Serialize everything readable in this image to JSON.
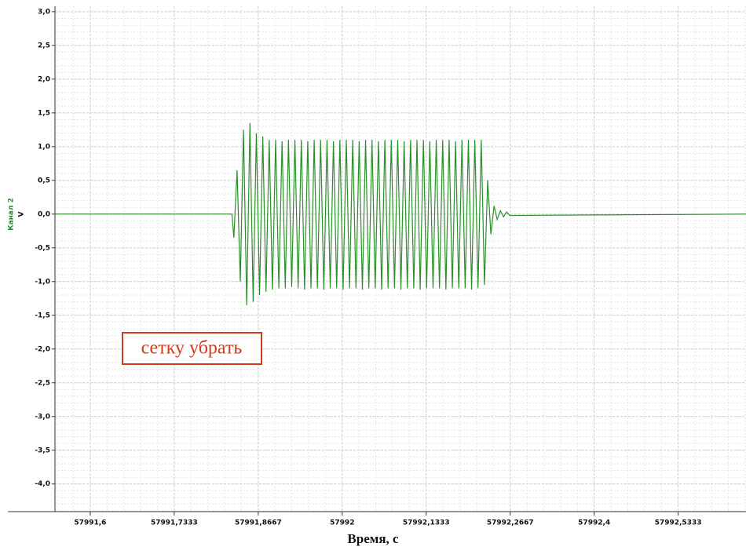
{
  "chart_data": {
    "type": "line",
    "ylabel": "Канал 2",
    "yunit": "V",
    "xlabel": "Время, с",
    "annotation": "сетку убрать",
    "color": "#2a8f2a",
    "grid": true,
    "xlim": [
      57991.544,
      57992.641
    ],
    "ylim": [
      -4.41,
      3.08
    ],
    "xticks": [
      {
        "value": 57991.6,
        "label": "57991,6"
      },
      {
        "value": 57991.7333,
        "label": "57991,7333"
      },
      {
        "value": 57991.8667,
        "label": "57991,8667"
      },
      57992,
      {
        "value": 57992.1333,
        "label": "57992,1333"
      },
      {
        "value": 57992.2667,
        "label": "57992,2667"
      },
      {
        "value": 57992.4,
        "label": "57992,4"
      },
      {
        "value": 57992.5333,
        "label": "57992,5333"
      }
    ],
    "yticks": [
      {
        "value": 3,
        "label": "3,0"
      },
      {
        "value": 2.5,
        "label": "2,5"
      },
      {
        "value": 2,
        "label": "2,0"
      },
      {
        "value": 1.5,
        "label": "1,5"
      },
      {
        "value": 1,
        "label": "1,0"
      },
      {
        "value": 0.5,
        "label": "0,5"
      },
      {
        "value": 0,
        "label": "0,0"
      },
      {
        "value": -0.5,
        "label": "-0,5"
      },
      {
        "value": -1,
        "label": "-1,0"
      },
      {
        "value": -1.5,
        "label": "-1,5"
      },
      {
        "value": -2,
        "label": "-2,0"
      },
      {
        "value": -2.5,
        "label": "-2,5"
      },
      {
        "value": -3,
        "label": "-3,0"
      },
      {
        "value": -3.5,
        "label": "-3,5"
      },
      {
        "value": -4,
        "label": "-4,0"
      }
    ],
    "x": [
      57991.544,
      57991.825,
      57991.828,
      57991.8331,
      57991.8382,
      57991.8433,
      57991.8484,
      57991.8535,
      57991.8586,
      57991.8637,
      57991.8688,
      57991.8739,
      57991.879,
      57991.8841,
      57991.8892,
      57991.8943,
      57991.8994,
      57991.9045,
      57991.9096,
      57991.9147,
      57991.9198,
      57991.9249,
      57991.93,
      57991.9351,
      57991.9402,
      57991.9453,
      57991.9504,
      57991.9555,
      57991.9606,
      57991.9657,
      57991.9708,
      57991.9759,
      57991.981,
      57991.9861,
      57991.9912,
      57991.9963,
      57992.0014,
      57992.0065,
      57992.0116,
      57992.0167,
      57992.0218,
      57992.0269,
      57992.032,
      57992.0371,
      57992.0422,
      57992.0473,
      57992.0524,
      57992.0575,
      57992.0626,
      57992.0677,
      57992.0728,
      57992.0779,
      57992.083,
      57992.0881,
      57992.0932,
      57992.0983,
      57992.1034,
      57992.1085,
      57992.1136,
      57992.1187,
      57992.1238,
      57992.1289,
      57992.134,
      57992.1391,
      57992.1442,
      57992.1493,
      57992.1544,
      57992.1595,
      57992.1646,
      57992.1697,
      57992.1748,
      57992.1799,
      57992.185,
      57992.1901,
      57992.1952,
      57992.2003,
      57992.2054,
      57992.2105,
      57992.2156,
      57992.2207,
      57992.2258,
      57992.2309,
      57992.236,
      57992.241,
      57992.246,
      57992.251,
      57992.256,
      57992.261,
      57992.266,
      57992.641
    ],
    "values": [
      0,
      0,
      -0.35,
      0.65,
      -1.0,
      1.25,
      -1.35,
      1.35,
      -1.3,
      1.2,
      -1.2,
      1.15,
      -1.15,
      1.1,
      -1.12,
      1.1,
      -1.1,
      1.08,
      -1.1,
      1.1,
      -1.08,
      1.1,
      -1.1,
      1.1,
      -1.12,
      1.08,
      -1.1,
      1.1,
      -1.1,
      1.1,
      -1.12,
      1.1,
      -1.1,
      1.08,
      -1.1,
      1.1,
      -1.12,
      1.1,
      -1.1,
      1.1,
      -1.1,
      1.08,
      -1.12,
      1.1,
      -1.1,
      1.1,
      -1.1,
      1.08,
      -1.12,
      1.1,
      -1.1,
      1.1,
      -1.1,
      1.1,
      -1.12,
      1.08,
      -1.1,
      1.1,
      -1.1,
      1.1,
      -1.12,
      1.1,
      -1.1,
      1.08,
      -1.1,
      1.1,
      -1.1,
      1.1,
      -1.12,
      1.1,
      -1.1,
      1.08,
      -1.1,
      1.1,
      -1.1,
      1.1,
      -1.12,
      1.1,
      -1.1,
      1.1,
      -1.05,
      0.5,
      -0.3,
      0.12,
      -0.08,
      0.05,
      -0.04,
      0.03,
      -0.02,
      0
    ]
  }
}
